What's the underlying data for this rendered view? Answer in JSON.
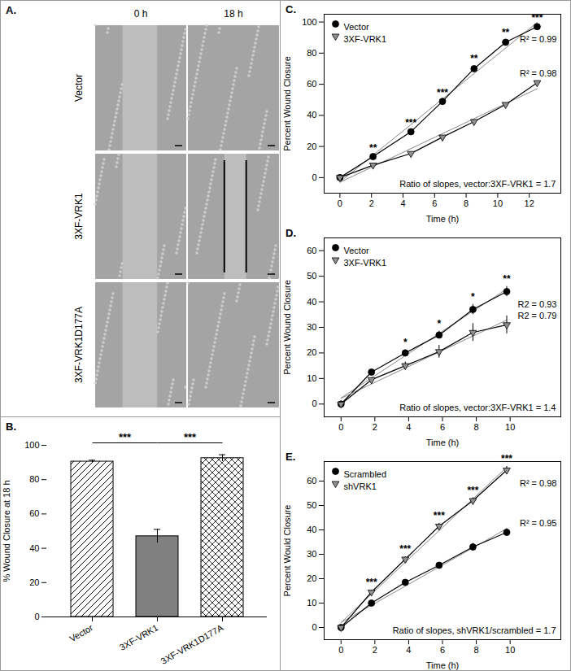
{
  "image_panel": {
    "title": "A.",
    "columns": [
      "0 h",
      "18 h"
    ],
    "rows": [
      "Vector",
      "3XF-VRK1",
      "3XF-VRK1D177A"
    ]
  },
  "chart_data": [
    {
      "type": "bar",
      "title": "B.",
      "categories": [
        "Vector",
        "3XF-VRK1",
        "3XF-VRK1D177A"
      ],
      "values": [
        90.5,
        47,
        92.5
      ],
      "errors": [
        0.8,
        4,
        2
      ],
      "colors": [
        "#ffffff",
        "#808080",
        "#ffffff"
      ],
      "y_label": "% Wound Closure at 18 h",
      "ylim": [
        0,
        100
      ],
      "yticks": [
        0,
        20,
        40,
        60,
        80,
        100
      ],
      "comparisons": [
        {
          "between": [
            "Vector",
            "3XF-VRK1"
          ],
          "label": "***"
        },
        {
          "between": [
            "3XF-VRK1",
            "3XF-VRK1D177A"
          ],
          "label": "***"
        }
      ]
    },
    {
      "type": "line",
      "title": "C.",
      "x_label": "Time (h)",
      "y_label": "Percent Wound Closure",
      "xlim": [
        -1,
        14
      ],
      "xticks": [
        0,
        2,
        4,
        6,
        8,
        10,
        12
      ],
      "ylim": [
        -10,
        105
      ],
      "yticks": [
        0,
        20,
        40,
        60,
        80,
        100
      ],
      "legend": "top-left",
      "x": [
        0,
        2.1,
        4.5,
        6.5,
        8.5,
        10.5,
        12.5
      ],
      "series": [
        {
          "name": "Vector",
          "color": "#000000",
          "marker": "circle",
          "values": [
            0,
            13.5,
            29.5,
            49,
            70,
            87,
            97
          ],
          "errors": [
            0,
            0.8,
            0.8,
            0.8,
            1.5,
            1.5,
            0.8
          ],
          "fit_label": "R² = 0.99"
        },
        {
          "name": "3XF-VRK1",
          "color": "#909090",
          "marker": "triangle-down",
          "values": [
            0,
            8,
            15.5,
            26,
            36,
            47,
            61
          ],
          "errors": [
            0,
            0.5,
            0.6,
            0.8,
            0.8,
            0.8,
            0.8
          ],
          "fit_label": "R² = 0.98"
        }
      ],
      "significance": [
        null,
        "**",
        "***",
        "***",
        "**",
        "**",
        "***"
      ],
      "annotations": [
        "Ratio of slopes, vector:3XF-VRK1 = 1.7"
      ]
    },
    {
      "type": "line",
      "title": "D.",
      "x_label": "Time (h)",
      "y_label": "Percent Wound Closure",
      "xlim": [
        -1,
        13
      ],
      "xticks": [
        0,
        2,
        4,
        6,
        8,
        10
      ],
      "ylim": [
        -5,
        65
      ],
      "yticks": [
        0,
        10,
        20,
        30,
        40,
        50,
        60
      ],
      "legend": "top-left",
      "x": [
        0,
        1.8,
        3.8,
        5.8,
        7.8,
        9.8
      ],
      "series": [
        {
          "name": "Vector",
          "color": "#000000",
          "marker": "circle",
          "values": [
            0,
            12.5,
            20,
            27,
            37,
            44
          ],
          "errors": [
            0,
            0.8,
            1.2,
            1.5,
            2,
            2
          ],
          "fit_label": "R2 = 0.93"
        },
        {
          "name": "3XF-VRK1",
          "color": "#909090",
          "marker": "triangle-down",
          "values": [
            0,
            9.5,
            15,
            20.5,
            28,
            31
          ],
          "errors": [
            0,
            0.8,
            1.5,
            2.5,
            3.5,
            3.5
          ],
          "fit_label": "R2 = 0.79"
        }
      ],
      "significance": [
        null,
        null,
        "*",
        "*",
        "*",
        "**"
      ],
      "annotations": [
        "Ratio of slopes, vector:3XF-VRK1 = 1.4"
      ]
    },
    {
      "type": "line",
      "title": "E.",
      "x_label": "Time (h)",
      "y_label": "Percent Would Closure",
      "xlim": [
        -1,
        13
      ],
      "xticks": [
        0,
        2,
        4,
        6,
        8,
        10
      ],
      "ylim": [
        -5,
        68
      ],
      "yticks": [
        0,
        10,
        20,
        30,
        40,
        50,
        60
      ],
      "legend": "top-left",
      "x": [
        0,
        1.8,
        3.8,
        5.8,
        7.8,
        9.8
      ],
      "series": [
        {
          "name": "Scrambled",
          "color": "#000000",
          "marker": "circle",
          "values": [
            0,
            10,
            18.5,
            25.5,
            33,
            39
          ],
          "errors": [
            0,
            0.5,
            0.8,
            1,
            1.5,
            1.5
          ],
          "fit_label": "R² = 0.95"
        },
        {
          "name": "shVRK1",
          "color": "#909090",
          "marker": "triangle-down",
          "values": [
            0,
            14.5,
            28,
            41.5,
            52,
            64.5
          ],
          "errors": [
            0,
            0.8,
            1,
            1.2,
            1.2,
            1.5
          ],
          "fit_label": "R² = 0.98"
        }
      ],
      "significance": [
        null,
        "***",
        "***",
        "***",
        "***",
        "***"
      ],
      "annotations": [
        "Ratio of slopes, shVRK1/scrambled = 1.7"
      ]
    }
  ]
}
